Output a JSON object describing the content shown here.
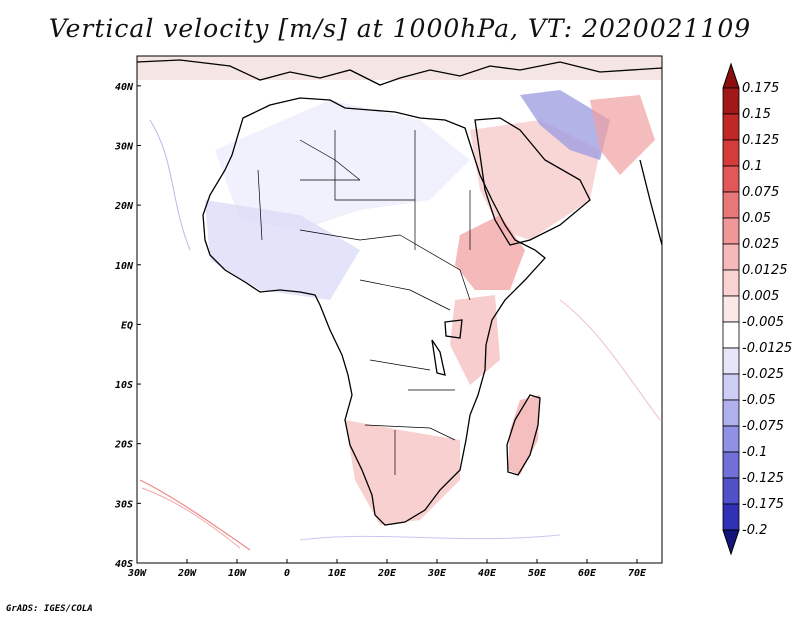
{
  "title": "Vertical velocity [m/s] at 1000hPa, VT: 2020021109",
  "credit": "GrADS: IGES/COLA",
  "map": {
    "lon_range": [
      -30,
      75
    ],
    "lat_range": [
      -40,
      45
    ],
    "lon_ticks": [
      {
        "value": -30,
        "label": "30W"
      },
      {
        "value": -20,
        "label": "20W"
      },
      {
        "value": -10,
        "label": "10W"
      },
      {
        "value": 0,
        "label": "0"
      },
      {
        "value": 10,
        "label": "10E"
      },
      {
        "value": 20,
        "label": "20E"
      },
      {
        "value": 30,
        "label": "30E"
      },
      {
        "value": 40,
        "label": "40E"
      },
      {
        "value": 50,
        "label": "50E"
      },
      {
        "value": 60,
        "label": "60E"
      },
      {
        "value": 70,
        "label": "70E"
      }
    ],
    "lat_ticks": [
      {
        "value": 40,
        "label": "40N"
      },
      {
        "value": 30,
        "label": "30N"
      },
      {
        "value": 20,
        "label": "20N"
      },
      {
        "value": 10,
        "label": "10N"
      },
      {
        "value": 0,
        "label": "EQ"
      },
      {
        "value": -10,
        "label": "10S"
      },
      {
        "value": -20,
        "label": "20S"
      },
      {
        "value": -30,
        "label": "30S"
      },
      {
        "value": -40,
        "label": "40S"
      }
    ]
  },
  "colorbar": {
    "levels": [
      {
        "label": "0.175",
        "color": "#a01818"
      },
      {
        "label": "0.15",
        "color": "#c02828"
      },
      {
        "label": "0.125",
        "color": "#d43c3c"
      },
      {
        "label": "0.1",
        "color": "#e05858"
      },
      {
        "label": "0.075",
        "color": "#e87878"
      },
      {
        "label": "0.05",
        "color": "#f09898"
      },
      {
        "label": "0.025",
        "color": "#f6b8b8"
      },
      {
        "label": "0.0125",
        "color": "#fad2d2"
      },
      {
        "label": "0.005",
        "color": "#fde8e8"
      },
      {
        "label": "-0.005",
        "color": "#ffffff"
      },
      {
        "label": "-0.0125",
        "color": "#e6e6fa"
      },
      {
        "label": "-0.025",
        "color": "#cdcdf5"
      },
      {
        "label": "-0.05",
        "color": "#b0b0ee"
      },
      {
        "label": "-0.075",
        "color": "#9090e4"
      },
      {
        "label": "-0.1",
        "color": "#7070d8"
      },
      {
        "label": "-0.125",
        "color": "#5050c8"
      },
      {
        "label": "-0.175",
        "color": "#3030b4"
      },
      {
        "label": "-0.2",
        "color": "#1a1a9a"
      }
    ],
    "top_tip_color": "#8b0f0f",
    "bottom_tip_color": "#14147a"
  }
}
